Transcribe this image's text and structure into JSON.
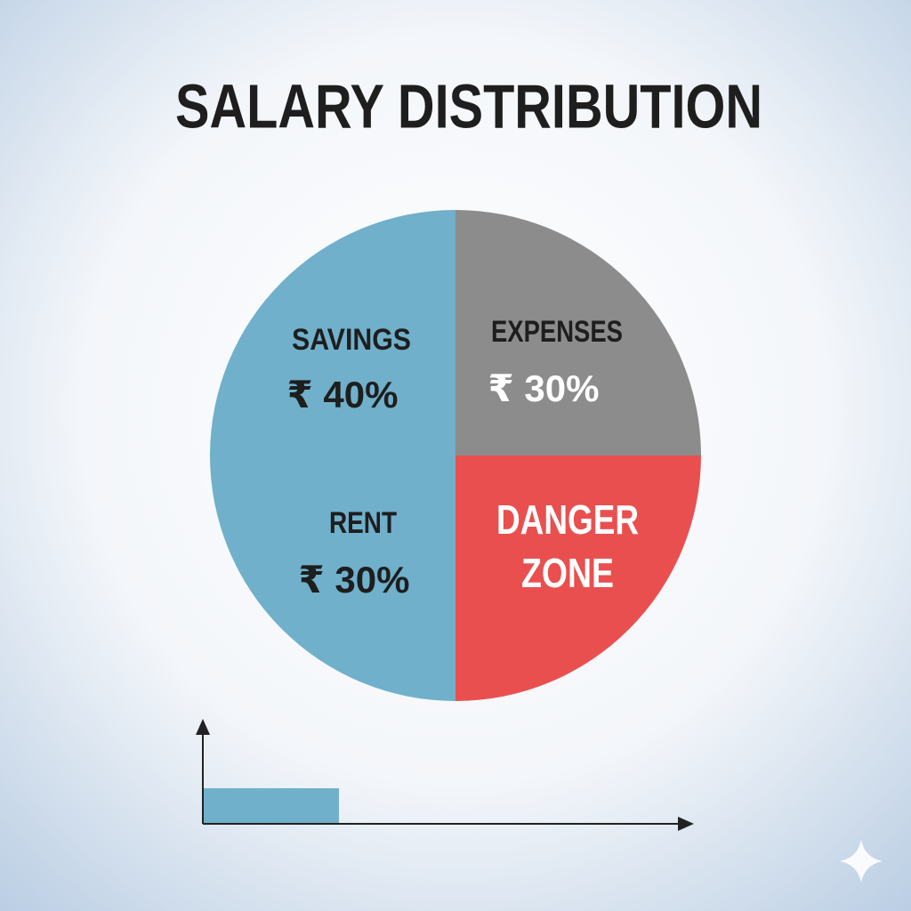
{
  "title": "SALARY DISTRIBUTION",
  "segments": [
    {
      "label": "SAVINGS",
      "amount": "₹ 40%"
    },
    {
      "label": "EXPENSES",
      "amount": "₹ 30%"
    },
    {
      "label": "RENT",
      "amount": "₹ 30%"
    },
    {
      "label_lines": [
        "DANGER",
        "ZONE"
      ]
    }
  ]
}
